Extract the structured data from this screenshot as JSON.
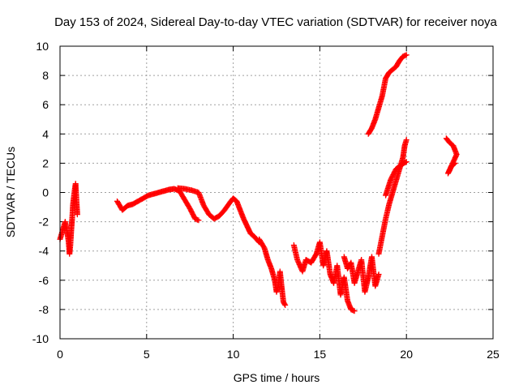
{
  "chart_data": {
    "type": "scatter",
    "title": "Day 153 of 2024, Sidereal Day-to-day VTEC variation (SDTVAR) for receiver noya",
    "xlabel": "GPS time / hours",
    "ylabel": "SDTVAR / TECUs",
    "xlim": [
      0,
      25
    ],
    "ylim": [
      -10,
      10
    ],
    "xticks": [
      0,
      5,
      10,
      15,
      20,
      25
    ],
    "yticks": [
      -10,
      -8,
      -6,
      -4,
      -2,
      0,
      2,
      4,
      6,
      8,
      10
    ],
    "grid": true,
    "marker": "+",
    "color": "#ff0000",
    "series": [
      {
        "name": "SDTVAR",
        "segments": [
          [
            [
              0.0,
              -3.2
            ],
            [
              0.1,
              -2.8
            ],
            [
              0.2,
              -2.4
            ],
            [
              0.3,
              -2.0
            ],
            [
              0.4,
              -2.6
            ],
            [
              0.5,
              -3.4
            ],
            [
              0.55,
              -4.2
            ],
            [
              0.6,
              -3.6
            ],
            [
              0.65,
              -2.6
            ],
            [
              0.7,
              -1.8
            ],
            [
              0.75,
              -0.8
            ],
            [
              0.8,
              -0.3
            ],
            [
              0.85,
              0.2
            ],
            [
              0.9,
              0.6
            ],
            [
              0.95,
              -0.5
            ],
            [
              1.0,
              -1.5
            ]
          ],
          [
            [
              3.3,
              -0.6
            ],
            [
              3.6,
              -1.2
            ],
            [
              3.9,
              -0.9
            ],
            [
              4.2,
              -0.8
            ],
            [
              4.5,
              -0.6
            ],
            [
              4.8,
              -0.4
            ],
            [
              5.1,
              -0.2
            ],
            [
              5.4,
              -0.1
            ],
            [
              5.7,
              0.0
            ],
            [
              6.0,
              0.1
            ],
            [
              6.3,
              0.2
            ],
            [
              6.6,
              0.25
            ],
            [
              6.9,
              0.1
            ],
            [
              7.2,
              -0.5
            ],
            [
              7.5,
              -1.1
            ],
            [
              7.8,
              -1.8
            ],
            [
              8.0,
              -1.9
            ]
          ],
          [
            [
              6.8,
              0.3
            ],
            [
              7.2,
              0.25
            ],
            [
              7.6,
              0.15
            ],
            [
              8.0,
              0.0
            ],
            [
              8.3,
              -0.9
            ],
            [
              8.6,
              -1.5
            ],
            [
              8.9,
              -1.8
            ],
            [
              9.2,
              -1.6
            ],
            [
              9.5,
              -1.2
            ],
            [
              9.8,
              -0.7
            ],
            [
              10.0,
              -0.4
            ],
            [
              10.2,
              -0.6
            ],
            [
              10.4,
              -1.2
            ],
            [
              10.6,
              -1.8
            ],
            [
              10.8,
              -2.3
            ],
            [
              11.0,
              -2.8
            ],
            [
              11.2,
              -3.0
            ],
            [
              11.5,
              -3.4
            ]
          ],
          [
            [
              11.5,
              -3.2
            ],
            [
              11.8,
              -3.8
            ],
            [
              12.0,
              -4.6
            ],
            [
              12.2,
              -5.2
            ],
            [
              12.4,
              -6.0
            ],
            [
              12.5,
              -6.8
            ],
            [
              12.6,
              -6.4
            ],
            [
              12.7,
              -5.4
            ],
            [
              12.8,
              -6.5
            ],
            [
              12.9,
              -7.5
            ],
            [
              13.0,
              -7.7
            ]
          ],
          [
            [
              13.5,
              -3.6
            ],
            [
              13.7,
              -4.6
            ],
            [
              14.0,
              -5.4
            ],
            [
              14.2,
              -4.6
            ],
            [
              14.5,
              -4.8
            ],
            [
              14.8,
              -4.2
            ],
            [
              15.0,
              -3.4
            ],
            [
              15.2,
              -5.0
            ],
            [
              15.4,
              -4.0
            ],
            [
              15.6,
              -5.6
            ],
            [
              15.8,
              -6.2
            ],
            [
              16.0,
              -5.0
            ],
            [
              16.2,
              -7.0
            ],
            [
              16.4,
              -5.8
            ],
            [
              16.6,
              -7.4
            ],
            [
              16.8,
              -8.0
            ],
            [
              17.0,
              -8.1
            ]
          ],
          [
            [
              16.4,
              -4.4
            ],
            [
              16.6,
              -5.2
            ],
            [
              16.8,
              -4.8
            ],
            [
              17.0,
              -6.2
            ],
            [
              17.2,
              -5.4
            ],
            [
              17.4,
              -4.6
            ],
            [
              17.6,
              -6.8
            ],
            [
              17.8,
              -5.8
            ],
            [
              18.0,
              -4.4
            ],
            [
              18.2,
              -6.4
            ],
            [
              18.4,
              -5.6
            ]
          ],
          [
            [
              18.4,
              -4.2
            ],
            [
              18.6,
              -3.0
            ],
            [
              18.8,
              -1.8
            ],
            [
              19.0,
              -0.8
            ],
            [
              19.2,
              0.0
            ],
            [
              19.4,
              0.8
            ],
            [
              19.6,
              1.6
            ],
            [
              19.8,
              2.4
            ],
            [
              19.9,
              3.2
            ],
            [
              20.0,
              3.6
            ]
          ],
          [
            [
              18.8,
              -0.2
            ],
            [
              19.1,
              0.9
            ],
            [
              19.4,
              1.6
            ],
            [
              19.7,
              1.9
            ],
            [
              20.0,
              2.1
            ]
          ],
          [
            [
              17.8,
              4.0
            ],
            [
              18.0,
              4.4
            ],
            [
              18.2,
              5.0
            ],
            [
              18.4,
              5.8
            ],
            [
              18.6,
              6.6
            ],
            [
              18.8,
              7.8
            ],
            [
              19.0,
              8.2
            ],
            [
              19.2,
              8.4
            ],
            [
              19.4,
              8.6
            ],
            [
              19.6,
              9.0
            ],
            [
              19.8,
              9.3
            ],
            [
              20.0,
              9.4
            ]
          ],
          [
            [
              22.3,
              3.7
            ],
            [
              22.5,
              3.4
            ],
            [
              22.7,
              3.2
            ],
            [
              22.9,
              2.6
            ],
            [
              22.4,
              1.3
            ],
            [
              22.6,
              1.8
            ],
            [
              22.8,
              2.0
            ]
          ]
        ]
      }
    ]
  }
}
